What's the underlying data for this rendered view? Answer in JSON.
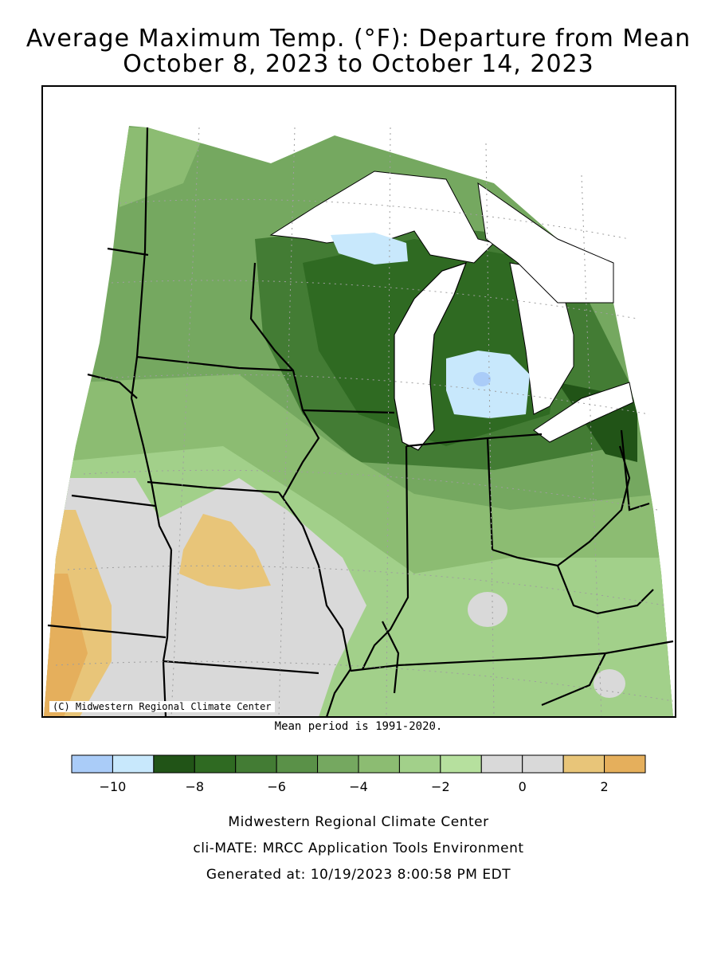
{
  "header": {
    "title": "Average Maximum Temp. (°F): Departure from Mean",
    "date_range": "October 8, 2023 to October 14, 2023"
  },
  "map": {
    "credit": "(C) Midwestern Regional Climate Center",
    "mean_period_note": "Mean period is 1991-2020."
  },
  "legend": {
    "colors": [
      "#aaccf8",
      "#c8e8fc",
      "#215417",
      "#2f6a22",
      "#437c34",
      "#5a9148",
      "#75a860",
      "#8cbc72",
      "#a2d08a",
      "#b6e09e",
      "#d9d9d9",
      "#d9d9d9",
      "#e8c579",
      "#e5af5c"
    ],
    "tick_labels": [
      "−10",
      "−8",
      "−6",
      "−4",
      "−2",
      "0",
      "2"
    ],
    "tick_values": [
      -10,
      -8,
      -6,
      -4,
      -2,
      0,
      2
    ],
    "range": [
      -11,
      3
    ]
  },
  "footer": {
    "line1": "Midwestern Regional Climate Center",
    "line2": "cli-MATE: MRCC Application Tools Environment",
    "line3": "Generated at: 10/19/2023 8:00:58 PM EDT"
  }
}
